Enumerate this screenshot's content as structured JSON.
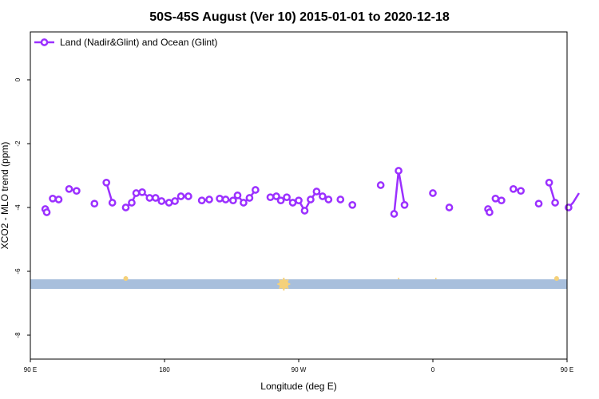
{
  "chart_data": {
    "type": "line",
    "title": "50S-45S August (Ver 10)   2015-01-01 to 2020-12-18",
    "xlabel": "Longitude (deg E)",
    "ylabel": "XCO2 - MLO trend (ppm)",
    "xlim": [
      90,
      450
    ],
    "ylim": [
      -8.75,
      1.5
    ],
    "x_ticks": [
      {
        "value": 90,
        "label": "90 E"
      },
      {
        "value": 180,
        "label": "180"
      },
      {
        "value": 270,
        "label": "90 W"
      },
      {
        "value": 360,
        "label": "0"
      },
      {
        "value": 450,
        "label": "90 E"
      }
    ],
    "y_ticks": [
      {
        "value": 0,
        "label": "0"
      },
      {
        "value": -2,
        "label": "-2"
      },
      {
        "value": -4,
        "label": "-4"
      },
      {
        "value": -6,
        "label": "-6"
      },
      {
        "value": -8,
        "label": "-8"
      }
    ],
    "legend": {
      "position": "top-left",
      "entries": [
        "Land (Nadir&Glint) and Ocean (Glint)"
      ]
    },
    "series": [
      {
        "name": "Land (Nadir&Glint) and Ocean (Glint)",
        "color": "#9b30ff",
        "segments": [
          [
            [
              100,
              -4.05
            ],
            [
              101,
              -4.15
            ]
          ],
          [
            [
              105,
              -3.72
            ],
            [
              109,
              -3.75
            ]
          ],
          [
            [
              116,
              -3.42
            ],
            [
              121,
              -3.48
            ]
          ],
          [
            [
              133,
              -3.88
            ]
          ],
          [
            [
              141,
              -3.22
            ],
            [
              145,
              -3.85
            ]
          ],
          [
            [
              154,
              -4.0
            ],
            [
              158,
              -3.85
            ],
            [
              161,
              -3.55
            ],
            [
              165,
              -3.52
            ],
            [
              170,
              -3.7
            ],
            [
              174,
              -3.7
            ],
            [
              178,
              -3.8
            ],
            [
              183,
              -3.85
            ],
            [
              187,
              -3.8
            ],
            [
              191,
              -3.65
            ],
            [
              196,
              -3.65
            ]
          ],
          [
            [
              205,
              -3.78
            ],
            [
              210,
              -3.75
            ]
          ],
          [
            [
              217,
              -3.72
            ],
            [
              221,
              -3.75
            ],
            [
              226,
              -3.78
            ],
            [
              229,
              -3.62
            ],
            [
              233,
              -3.85
            ],
            [
              237,
              -3.7
            ],
            [
              241,
              -3.45
            ]
          ],
          [
            [
              251,
              -3.68
            ],
            [
              255,
              -3.65
            ],
            [
              258,
              -3.78
            ],
            [
              262,
              -3.68
            ],
            [
              266,
              -3.85
            ],
            [
              270,
              -3.78
            ],
            [
              274,
              -4.1
            ],
            [
              278,
              -3.75
            ],
            [
              282,
              -3.5
            ],
            [
              286,
              -3.65
            ],
            [
              290,
              -3.75
            ]
          ],
          [
            [
              298,
              -3.75
            ]
          ],
          [
            [
              306,
              -3.92
            ]
          ],
          [
            [
              325,
              -3.3
            ]
          ],
          [
            [
              334,
              -4.2
            ],
            [
              337,
              -2.85
            ],
            [
              341,
              -3.92
            ]
          ],
          [
            [
              360,
              -3.55
            ]
          ],
          [
            [
              371,
              -4.0
            ]
          ],
          [
            [
              397,
              -4.05
            ],
            [
              398,
              -4.15
            ]
          ],
          [
            [
              402,
              -3.72
            ],
            [
              406,
              -3.78
            ]
          ],
          [
            [
              414,
              -3.42
            ],
            [
              419,
              -3.48
            ]
          ],
          [
            [
              431,
              -3.88
            ]
          ],
          [
            [
              438,
              -3.22
            ],
            [
              442,
              -3.85
            ]
          ],
          [
            [
              451,
              -4.0
            ],
            [
              454,
              -3.85
            ],
            [
              458,
              -3.55
            ]
          ]
        ]
      }
    ],
    "band": {
      "y_from": -6.55,
      "y_to": -6.25,
      "color": "#a8bfdc"
    },
    "band_markers": {
      "color": "#f5d17a",
      "points": [
        {
          "x": 154,
          "size": 3
        },
        {
          "x": 260,
          "size": 6
        },
        {
          "x": 337,
          "size": 1
        },
        {
          "x": 362,
          "size": 1
        },
        {
          "x": 443,
          "size": 3
        }
      ]
    }
  }
}
